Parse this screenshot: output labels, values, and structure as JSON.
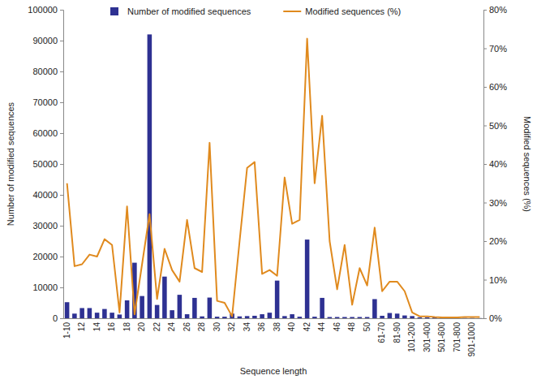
{
  "chart_data": {
    "type": "bar",
    "x_label": "Sequence length",
    "y_label": "Number of modified sequences",
    "y2_label": "Modified sequences (%)",
    "legend": "top",
    "categories": [
      "1-10",
      null,
      "12",
      null,
      "14",
      null,
      "16",
      null,
      "18",
      null,
      "20",
      null,
      "22",
      null,
      "24",
      null,
      "26",
      null,
      "28",
      null,
      "30",
      null,
      "32",
      null,
      "34",
      null,
      "36",
      null,
      "38",
      null,
      "40",
      null,
      "42",
      null,
      "44",
      null,
      "46",
      null,
      "48",
      null,
      "50",
      null,
      "61-70",
      null,
      "81-90",
      null,
      "101-200",
      null,
      "301-400",
      null,
      "501-600",
      null,
      "701-800",
      null,
      "901-1000",
      null
    ],
    "series": [
      {
        "name": "Number of modified sequences",
        "type": "bar",
        "color": "#2e3192",
        "values": [
          5200,
          1500,
          3300,
          3300,
          1800,
          3000,
          1800,
          1200,
          5800,
          18000,
          7200,
          92000,
          4300,
          13500,
          2600,
          7600,
          1300,
          6600,
          600,
          6700,
          500,
          500,
          1500,
          600,
          700,
          800,
          1300,
          1800,
          12200,
          700,
          1300,
          500,
          25500,
          500,
          6600,
          400,
          400,
          400,
          400,
          400,
          400,
          6200,
          800,
          1700,
          1500,
          900,
          700,
          300,
          300,
          300,
          300,
          200,
          100,
          100,
          100,
          50
        ]
      },
      {
        "name": "Modified sequences (%)",
        "type": "line",
        "color": "#e08a1e",
        "axis": "y2",
        "values": [
          35,
          13.5,
          14,
          16.5,
          16,
          20.5,
          19,
          1.5,
          29,
          1,
          14,
          27,
          5,
          18,
          12.5,
          9.5,
          25.5,
          13,
          12,
          45.5,
          4.5,
          4,
          0.5,
          20,
          39,
          40.5,
          11.5,
          12.5,
          11,
          36.5,
          24.5,
          25.5,
          72.5,
          35,
          52.5,
          20,
          7.5,
          19,
          3.5,
          13,
          8.5,
          23.5,
          7,
          9.5,
          9.5,
          7,
          1.5,
          0.5,
          0.5,
          0.3,
          0.2,
          0.2,
          0.2,
          0.3,
          0.3,
          0.3
        ]
      }
    ],
    "ylim": [
      0,
      100000
    ],
    "yticks": [
      0,
      10000,
      20000,
      30000,
      40000,
      50000,
      60000,
      70000,
      80000,
      90000,
      100000
    ],
    "y2lim": [
      0,
      80
    ],
    "y2ticks": [
      {
        "value": 0,
        "label": "0%"
      },
      {
        "value": 10,
        "label": "10%"
      },
      {
        "value": 20,
        "label": "20%"
      },
      {
        "value": 30,
        "label": "30%"
      },
      {
        "value": 40,
        "label": "40%"
      },
      {
        "value": 50,
        "label": "50%"
      },
      {
        "value": 60,
        "label": "60%"
      },
      {
        "value": 70,
        "label": "70%"
      },
      {
        "value": 80,
        "label": "80%"
      }
    ]
  }
}
